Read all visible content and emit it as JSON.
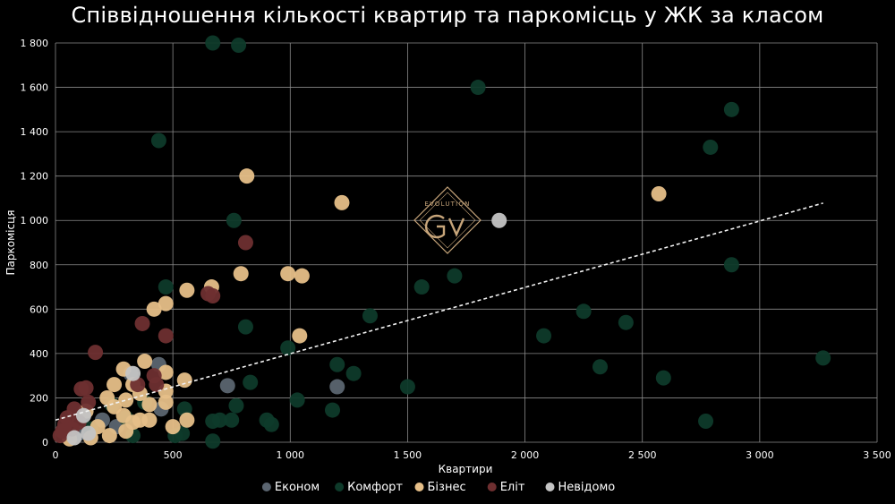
{
  "chart_data": {
    "type": "scatter",
    "title": "Співвідношення кількості квартир та паркомісць у ЖК за класом",
    "xlabel": "Квартири",
    "ylabel": "Паркомісця",
    "xlim": [
      0,
      3500
    ],
    "ylim": [
      0,
      1800
    ],
    "x_ticks": [
      0,
      500,
      1000,
      1500,
      2000,
      2500,
      3000,
      3500
    ],
    "x_tick_labels": [
      "0",
      "500",
      "1 000",
      "1 500",
      "2 000",
      "2 500",
      "3 000",
      "3 500"
    ],
    "y_ticks": [
      0,
      200,
      400,
      600,
      800,
      1000,
      1200,
      1400,
      1600,
      1800
    ],
    "y_tick_labels": [
      "0",
      "200",
      "400",
      "600",
      "800",
      "1 000",
      "1 200",
      "1 400",
      "1 600",
      "1 800"
    ],
    "grid": true,
    "legend_position": "bottom",
    "logo_text": "EVOLUTION",
    "trendline": {
      "x": [
        0,
        3270
      ],
      "y": [
        100,
        1078
      ],
      "style": "dashed"
    },
    "series": [
      {
        "name": "Економ",
        "color": "#5b6570",
        "points": [
          [
            733,
            255
          ],
          [
            1200,
            250
          ],
          [
            440,
            350
          ],
          [
            320,
            310
          ],
          [
            450,
            150
          ],
          [
            200,
            100
          ],
          [
            100,
            40
          ],
          [
            260,
            70
          ]
        ]
      },
      {
        "name": "Комфорт",
        "color": "#0e3a2a",
        "points": [
          [
            670,
            1800
          ],
          [
            780,
            1790
          ],
          [
            1800,
            1600
          ],
          [
            440,
            1360
          ],
          [
            2880,
            1500
          ],
          [
            2790,
            1330
          ],
          [
            760,
            1000
          ],
          [
            2880,
            800
          ],
          [
            1700,
            750
          ],
          [
            1560,
            700
          ],
          [
            470,
            700
          ],
          [
            1340,
            570
          ],
          [
            2250,
            590
          ],
          [
            2430,
            540
          ],
          [
            810,
            520
          ],
          [
            2080,
            480
          ],
          [
            990,
            425
          ],
          [
            3270,
            380
          ],
          [
            1200,
            350
          ],
          [
            2320,
            340
          ],
          [
            1270,
            310
          ],
          [
            2590,
            290
          ],
          [
            830,
            270
          ],
          [
            1500,
            250
          ],
          [
            1030,
            190
          ],
          [
            770,
            165
          ],
          [
            550,
            150
          ],
          [
            1180,
            145
          ],
          [
            700,
            100
          ],
          [
            670,
            95
          ],
          [
            750,
            100
          ],
          [
            900,
            100
          ],
          [
            920,
            80
          ],
          [
            2770,
            95
          ],
          [
            540,
            40
          ],
          [
            510,
            30
          ],
          [
            670,
            5
          ],
          [
            330,
            30
          ],
          [
            380,
            180
          ],
          [
            300,
            110
          ],
          [
            150,
            60
          ],
          [
            240,
            170
          ]
        ]
      },
      {
        "name": "Бізнес",
        "color": "#e6bf88",
        "points": [
          [
            815,
            1200
          ],
          [
            1220,
            1080
          ],
          [
            2570,
            1120
          ],
          [
            990,
            760
          ],
          [
            1050,
            750
          ],
          [
            790,
            760
          ],
          [
            665,
            700
          ],
          [
            560,
            685
          ],
          [
            470,
            625
          ],
          [
            420,
            600
          ],
          [
            1040,
            480
          ],
          [
            380,
            365
          ],
          [
            470,
            315
          ],
          [
            290,
            330
          ],
          [
            550,
            280
          ],
          [
            470,
            230
          ],
          [
            360,
            220
          ],
          [
            300,
            190
          ],
          [
            220,
            200
          ],
          [
            470,
            180
          ],
          [
            400,
            170
          ],
          [
            250,
            160
          ],
          [
            130,
            140
          ],
          [
            290,
            120
          ],
          [
            360,
            100
          ],
          [
            400,
            100
          ],
          [
            330,
            90
          ],
          [
            560,
            100
          ],
          [
            500,
            70
          ],
          [
            300,
            50
          ],
          [
            230,
            30
          ],
          [
            150,
            20
          ],
          [
            60,
            15
          ],
          [
            180,
            70
          ],
          [
            250,
            260
          ],
          [
            330,
            260
          ]
        ]
      },
      {
        "name": "Еліт",
        "color": "#6e2f30",
        "points": [
          [
            810,
            900
          ],
          [
            650,
            670
          ],
          [
            670,
            660
          ],
          [
            370,
            535
          ],
          [
            470,
            480
          ],
          [
            170,
            405
          ],
          [
            420,
            300
          ],
          [
            350,
            260
          ],
          [
            430,
            260
          ],
          [
            130,
            245
          ],
          [
            110,
            240
          ],
          [
            80,
            150
          ],
          [
            50,
            110
          ],
          [
            40,
            80
          ],
          [
            100,
            90
          ],
          [
            30,
            50
          ],
          [
            70,
            60
          ],
          [
            20,
            30
          ],
          [
            140,
            180
          ]
        ]
      },
      {
        "name": "Невідомо",
        "color": "#c4c4c4",
        "points": [
          [
            1890,
            1000
          ],
          [
            330,
            310
          ],
          [
            120,
            120
          ],
          [
            80,
            20
          ],
          [
            140,
            40
          ]
        ]
      }
    ]
  }
}
